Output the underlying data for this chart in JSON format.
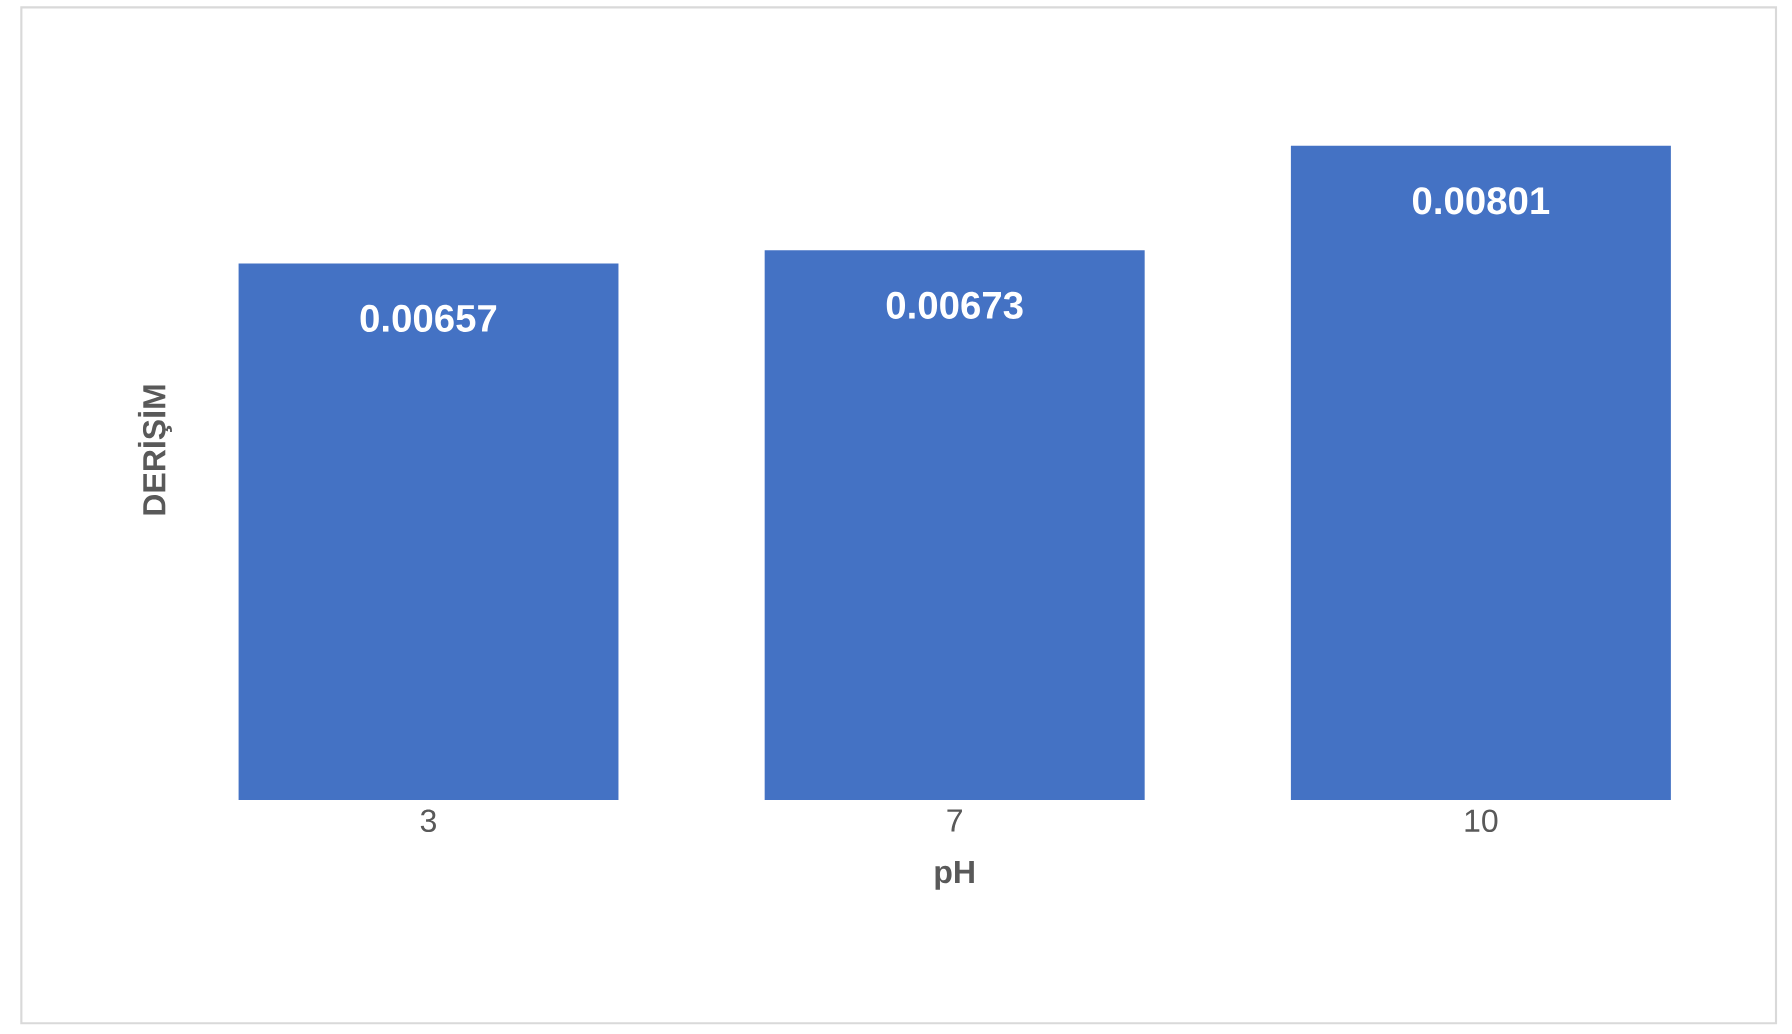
{
  "chart_data": {
    "type": "bar",
    "xlabel": "pH",
    "ylabel": "DERİŞİM",
    "categories": [
      "3",
      "7",
      "10"
    ],
    "values": [
      0.00657,
      0.00673,
      0.00801
    ],
    "color": "#4472c4",
    "data_labels": true
  }
}
